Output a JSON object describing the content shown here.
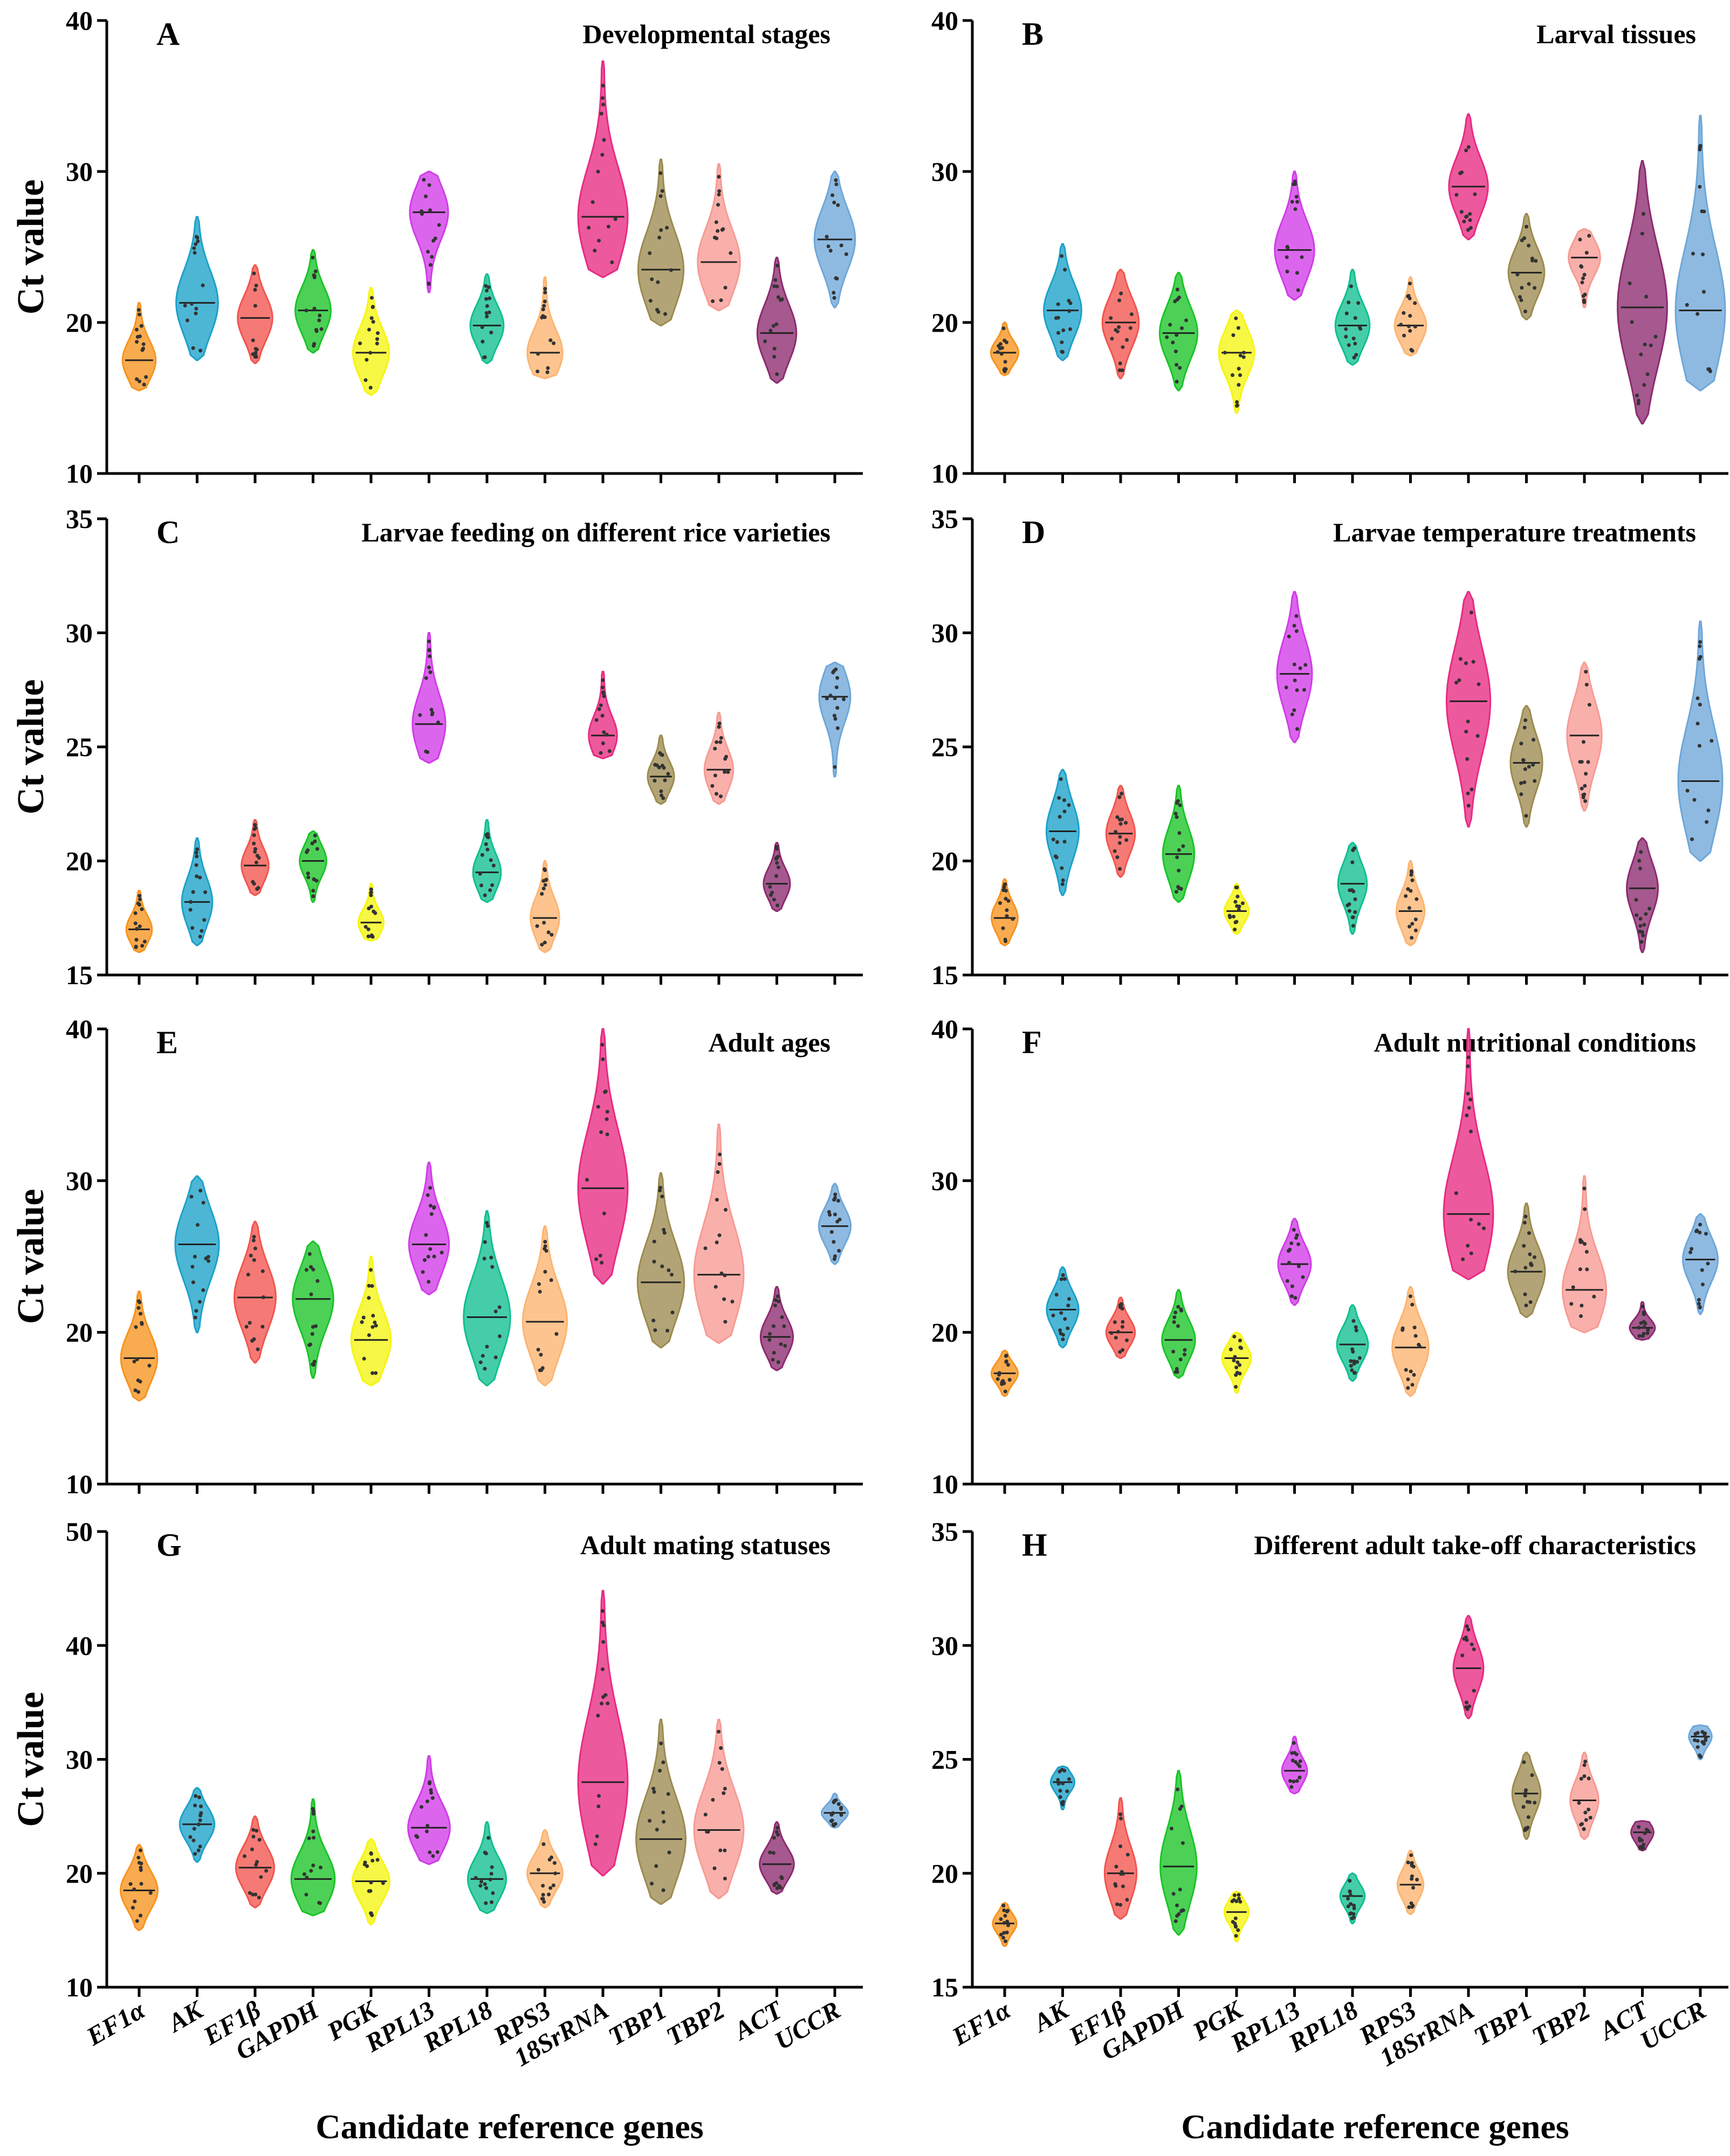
{
  "figure": {
    "xlabel": "Candidate reference genes",
    "genes": [
      "EF1α",
      "AK",
      "EF1β",
      "GAPDH",
      "PGK",
      "RPL13",
      "RPL18",
      "RPS3",
      "18SrRNA",
      "TBP1",
      "TBP2",
      "ACT",
      "UCCR"
    ],
    "gene_colors": [
      "#f7931e",
      "#1ba1c9",
      "#f2544e",
      "#19c427",
      "#f5f511",
      "#d13be8",
      "#0fbf8f",
      "#fcb470",
      "#e82a82",
      "#9c8a4f",
      "#f79a94",
      "#8c2a6e",
      "#6ea7d9"
    ]
  },
  "chart_data": [
    {
      "type": "violin",
      "panel": "A",
      "title": "Developmental stages",
      "ylabel": "Ct value",
      "ylim": [
        10,
        40
      ],
      "yticks": [
        10,
        20,
        30,
        40
      ],
      "series": [
        {
          "gene": "EF1α",
          "min": 15.5,
          "max": 21.3,
          "median": 17.5
        },
        {
          "gene": "AK",
          "min": 17.5,
          "max": 27.0,
          "median": 21.3
        },
        {
          "gene": "EF1β",
          "min": 17.3,
          "max": 23.8,
          "median": 20.3
        },
        {
          "gene": "GAPDH",
          "min": 18.0,
          "max": 24.8,
          "median": 20.8
        },
        {
          "gene": "PGK",
          "min": 15.2,
          "max": 22.3,
          "median": 18.0
        },
        {
          "gene": "RPL13",
          "min": 22.0,
          "max": 30.0,
          "median": 27.3
        },
        {
          "gene": "RPL18",
          "min": 17.3,
          "max": 23.2,
          "median": 19.8
        },
        {
          "gene": "RPS3",
          "min": 16.3,
          "max": 23.0,
          "median": 18.0
        },
        {
          "gene": "18SrRNA",
          "min": 23.0,
          "max": 37.3,
          "median": 27.0
        },
        {
          "gene": "TBP1",
          "min": 19.8,
          "max": 30.8,
          "median": 23.5
        },
        {
          "gene": "TBP2",
          "min": 20.8,
          "max": 30.5,
          "median": 24.0
        },
        {
          "gene": "ACT",
          "min": 16.0,
          "max": 24.3,
          "median": 19.3
        },
        {
          "gene": "UCCR",
          "min": 21.0,
          "max": 30.0,
          "median": 25.5
        }
      ]
    },
    {
      "type": "violin",
      "panel": "B",
      "title": "Larval tissues",
      "ylabel": "",
      "ylim": [
        10,
        40
      ],
      "yticks": [
        10,
        20,
        30,
        40
      ],
      "series": [
        {
          "gene": "EF1α",
          "min": 16.5,
          "max": 20.0,
          "median": 18.0
        },
        {
          "gene": "AK",
          "min": 17.5,
          "max": 25.2,
          "median": 20.8
        },
        {
          "gene": "EF1β",
          "min": 16.3,
          "max": 23.5,
          "median": 20.0
        },
        {
          "gene": "GAPDH",
          "min": 15.5,
          "max": 23.3,
          "median": 19.3
        },
        {
          "gene": "PGK",
          "min": 14.0,
          "max": 20.8,
          "median": 18.0
        },
        {
          "gene": "RPL13",
          "min": 21.5,
          "max": 30.0,
          "median": 24.8
        },
        {
          "gene": "RPL18",
          "min": 17.2,
          "max": 23.5,
          "median": 19.8
        },
        {
          "gene": "RPS3",
          "min": 17.8,
          "max": 23.0,
          "median": 19.8
        },
        {
          "gene": "18SrRNA",
          "min": 25.5,
          "max": 33.8,
          "median": 29.0
        },
        {
          "gene": "TBP1",
          "min": 20.2,
          "max": 27.2,
          "median": 23.3
        },
        {
          "gene": "TBP2",
          "min": 21.0,
          "max": 26.2,
          "median": 24.3
        },
        {
          "gene": "ACT",
          "min": 13.3,
          "max": 30.7,
          "median": 21.0
        },
        {
          "gene": "UCCR",
          "min": 15.5,
          "max": 33.7,
          "median": 20.8
        }
      ]
    },
    {
      "type": "violin",
      "panel": "C",
      "title": "Larvae feeding on different rice varieties",
      "ylabel": "Ct value",
      "ylim": [
        15,
        35
      ],
      "yticks": [
        15,
        20,
        25,
        30,
        35
      ],
      "series": [
        {
          "gene": "EF1α",
          "min": 16.0,
          "max": 18.7,
          "median": 17.0
        },
        {
          "gene": "AK",
          "min": 16.3,
          "max": 21.0,
          "median": 18.2
        },
        {
          "gene": "EF1β",
          "min": 18.5,
          "max": 21.8,
          "median": 19.8
        },
        {
          "gene": "GAPDH",
          "min": 18.2,
          "max": 21.3,
          "median": 20.0
        },
        {
          "gene": "PGK",
          "min": 16.5,
          "max": 19.0,
          "median": 17.3
        },
        {
          "gene": "RPL13",
          "min": 24.3,
          "max": 30.0,
          "median": 26.0
        },
        {
          "gene": "RPL18",
          "min": 18.2,
          "max": 21.8,
          "median": 19.5
        },
        {
          "gene": "RPS3",
          "min": 16.0,
          "max": 20.0,
          "median": 17.5
        },
        {
          "gene": "18SrRNA",
          "min": 24.5,
          "max": 28.3,
          "median": 25.5
        },
        {
          "gene": "TBP1",
          "min": 22.5,
          "max": 25.5,
          "median": 23.7
        },
        {
          "gene": "TBP2",
          "min": 22.5,
          "max": 26.5,
          "median": 24.0
        },
        {
          "gene": "ACT",
          "min": 17.8,
          "max": 20.8,
          "median": 19.0
        },
        {
          "gene": "UCCR",
          "min": 23.7,
          "max": 28.7,
          "median": 27.2
        }
      ]
    },
    {
      "type": "violin",
      "panel": "D",
      "title": "Larvae temperature treatments",
      "ylabel": "",
      "ylim": [
        15,
        35
      ],
      "yticks": [
        15,
        20,
        25,
        30,
        35
      ],
      "series": [
        {
          "gene": "EF1α",
          "min": 16.3,
          "max": 19.2,
          "median": 17.5
        },
        {
          "gene": "AK",
          "min": 18.5,
          "max": 24.0,
          "median": 21.3
        },
        {
          "gene": "EF1β",
          "min": 19.3,
          "max": 23.3,
          "median": 21.2
        },
        {
          "gene": "GAPDH",
          "min": 18.2,
          "max": 23.3,
          "median": 20.3
        },
        {
          "gene": "PGK",
          "min": 16.8,
          "max": 19.0,
          "median": 17.8
        },
        {
          "gene": "RPL13",
          "min": 25.2,
          "max": 31.8,
          "median": 28.2
        },
        {
          "gene": "RPL18",
          "min": 16.8,
          "max": 20.8,
          "median": 19.0
        },
        {
          "gene": "RPS3",
          "min": 16.3,
          "max": 20.0,
          "median": 17.8
        },
        {
          "gene": "18SrRNA",
          "min": 21.5,
          "max": 31.8,
          "median": 27.0
        },
        {
          "gene": "TBP1",
          "min": 21.5,
          "max": 26.8,
          "median": 24.3
        },
        {
          "gene": "TBP2",
          "min": 22.2,
          "max": 28.7,
          "median": 25.5
        },
        {
          "gene": "ACT",
          "min": 16.0,
          "max": 21.0,
          "median": 18.8
        },
        {
          "gene": "UCCR",
          "min": 20.0,
          "max": 30.5,
          "median": 23.5
        }
      ]
    },
    {
      "type": "violin",
      "panel": "E",
      "title": "Adult ages",
      "ylabel": "Ct value",
      "ylim": [
        10,
        40
      ],
      "yticks": [
        10,
        20,
        30,
        40
      ],
      "series": [
        {
          "gene": "EF1α",
          "min": 15.5,
          "max": 22.7,
          "median": 18.3
        },
        {
          "gene": "AK",
          "min": 20.0,
          "max": 30.3,
          "median": 25.8
        },
        {
          "gene": "EF1β",
          "min": 18.0,
          "max": 27.3,
          "median": 22.3
        },
        {
          "gene": "GAPDH",
          "min": 17.0,
          "max": 26.0,
          "median": 22.2
        },
        {
          "gene": "PGK",
          "min": 16.5,
          "max": 25.0,
          "median": 19.5
        },
        {
          "gene": "RPL13",
          "min": 22.5,
          "max": 31.2,
          "median": 25.8
        },
        {
          "gene": "RPL18",
          "min": 16.5,
          "max": 28.0,
          "median": 21.0
        },
        {
          "gene": "RPS3",
          "min": 16.5,
          "max": 27.0,
          "median": 20.7
        },
        {
          "gene": "18SrRNA",
          "min": 23.2,
          "max": 40.0,
          "median": 29.5
        },
        {
          "gene": "TBP1",
          "min": 19.0,
          "max": 30.5,
          "median": 23.3
        },
        {
          "gene": "TBP2",
          "min": 19.3,
          "max": 33.7,
          "median": 23.8
        },
        {
          "gene": "ACT",
          "min": 17.5,
          "max": 23.0,
          "median": 19.7
        },
        {
          "gene": "UCCR",
          "min": 24.5,
          "max": 29.8,
          "median": 27.0
        }
      ]
    },
    {
      "type": "violin",
      "panel": "F",
      "title": "Adult nutritional conditions",
      "ylabel": "",
      "ylim": [
        10,
        40
      ],
      "yticks": [
        10,
        20,
        30,
        40
      ],
      "series": [
        {
          "gene": "EF1α",
          "min": 15.8,
          "max": 18.8,
          "median": 17.3
        },
        {
          "gene": "AK",
          "min": 19.0,
          "max": 24.3,
          "median": 21.5
        },
        {
          "gene": "EF1β",
          "min": 18.3,
          "max": 22.3,
          "median": 20.0
        },
        {
          "gene": "GAPDH",
          "min": 17.0,
          "max": 22.8,
          "median": 19.5
        },
        {
          "gene": "PGK",
          "min": 16.0,
          "max": 20.0,
          "median": 18.3
        },
        {
          "gene": "RPL13",
          "min": 21.8,
          "max": 27.5,
          "median": 24.5
        },
        {
          "gene": "RPL18",
          "min": 16.8,
          "max": 21.8,
          "median": 19.2
        },
        {
          "gene": "RPS3",
          "min": 15.8,
          "max": 23.0,
          "median": 19.0
        },
        {
          "gene": "18SrRNA",
          "min": 23.5,
          "max": 40.0,
          "median": 27.8
        },
        {
          "gene": "TBP1",
          "min": 21.0,
          "max": 28.5,
          "median": 24.0
        },
        {
          "gene": "TBP2",
          "min": 20.0,
          "max": 30.3,
          "median": 22.8
        },
        {
          "gene": "ACT",
          "min": 19.5,
          "max": 22.0,
          "median": 20.3
        },
        {
          "gene": "UCCR",
          "min": 21.2,
          "max": 27.8,
          "median": 24.8
        }
      ]
    },
    {
      "type": "violin",
      "panel": "G",
      "title": "Adult mating statuses",
      "ylabel": "Ct value",
      "ylim": [
        10,
        50
      ],
      "yticks": [
        10,
        20,
        30,
        40,
        50
      ],
      "series": [
        {
          "gene": "EF1α",
          "min": 15.0,
          "max": 22.5,
          "median": 18.5
        },
        {
          "gene": "AK",
          "min": 21.0,
          "max": 27.5,
          "median": 24.3
        },
        {
          "gene": "EF1β",
          "min": 17.0,
          "max": 25.0,
          "median": 20.5
        },
        {
          "gene": "GAPDH",
          "min": 16.3,
          "max": 26.5,
          "median": 19.5
        },
        {
          "gene": "PGK",
          "min": 15.5,
          "max": 23.0,
          "median": 19.3
        },
        {
          "gene": "RPL13",
          "min": 20.8,
          "max": 30.3,
          "median": 24.0
        },
        {
          "gene": "RPL18",
          "min": 16.5,
          "max": 24.5,
          "median": 19.5
        },
        {
          "gene": "RPS3",
          "min": 17.0,
          "max": 23.8,
          "median": 20.0
        },
        {
          "gene": "18SrRNA",
          "min": 19.8,
          "max": 44.8,
          "median": 28.0
        },
        {
          "gene": "TBP1",
          "min": 17.3,
          "max": 33.5,
          "median": 23.0
        },
        {
          "gene": "TBP2",
          "min": 17.8,
          "max": 33.5,
          "median": 23.8
        },
        {
          "gene": "ACT",
          "min": 18.2,
          "max": 24.5,
          "median": 20.8
        },
        {
          "gene": "UCCR",
          "min": 24.0,
          "max": 27.0,
          "median": 25.3
        }
      ]
    },
    {
      "type": "violin",
      "panel": "H",
      "title": "Different adult take-off characteristics",
      "ylabel": "",
      "ylim": [
        15,
        35
      ],
      "yticks": [
        15,
        20,
        25,
        30,
        35
      ],
      "series": [
        {
          "gene": "EF1α",
          "min": 16.8,
          "max": 18.7,
          "median": 17.8
        },
        {
          "gene": "AK",
          "min": 22.8,
          "max": 24.7,
          "median": 24.0
        },
        {
          "gene": "EF1β",
          "min": 18.0,
          "max": 23.3,
          "median": 20.0
        },
        {
          "gene": "GAPDH",
          "min": 17.3,
          "max": 24.5,
          "median": 20.3
        },
        {
          "gene": "PGK",
          "min": 17.0,
          "max": 19.2,
          "median": 18.3
        },
        {
          "gene": "RPL13",
          "min": 23.5,
          "max": 26.0,
          "median": 24.5
        },
        {
          "gene": "RPL18",
          "min": 17.8,
          "max": 20.0,
          "median": 19.0
        },
        {
          "gene": "RPS3",
          "min": 18.2,
          "max": 21.0,
          "median": 19.5
        },
        {
          "gene": "18SrRNA",
          "min": 26.8,
          "max": 31.3,
          "median": 29.0
        },
        {
          "gene": "TBP1",
          "min": 21.5,
          "max": 25.3,
          "median": 23.5
        },
        {
          "gene": "TBP2",
          "min": 21.5,
          "max": 25.3,
          "median": 23.2
        },
        {
          "gene": "ACT",
          "min": 21.0,
          "max": 22.3,
          "median": 21.8
        },
        {
          "gene": "UCCR",
          "min": 25.0,
          "max": 26.5,
          "median": 26.0
        }
      ]
    }
  ]
}
